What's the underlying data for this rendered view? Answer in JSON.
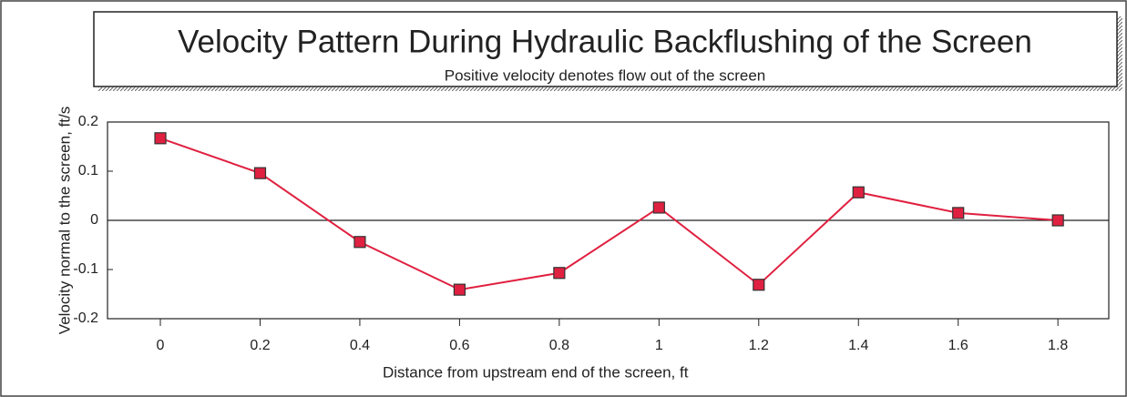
{
  "chart_data": {
    "type": "line",
    "title": "Velocity Pattern During Hydraulic Backflushing of the Screen",
    "subtitle": "Positive velocity denotes flow out of the screen",
    "x_label": "Distance from upstream end of the screen, ft",
    "y_label": "Velocity normal to the screen, ft/s",
    "x": [
      0,
      0.2,
      0.4,
      0.6,
      0.8,
      1,
      1.2,
      1.4,
      1.6,
      1.8
    ],
    "series": [
      {
        "color": "#e02040",
        "values": [
          0.167,
          0.096,
          -0.044,
          -0.141,
          -0.107,
          0.026,
          -0.131,
          0.057,
          0.015,
          0
        ]
      }
    ],
    "xlim": [
      -0.106,
      1.902
    ],
    "xticks": [
      0,
      0.2,
      0.4,
      0.6,
      0.8,
      1,
      1.2,
      1.4,
      1.6,
      1.8
    ],
    "ylim": [
      -0.2,
      0.2
    ],
    "yticks": [
      -0.2,
      -0.1,
      0,
      0.1,
      0.2
    ]
  }
}
